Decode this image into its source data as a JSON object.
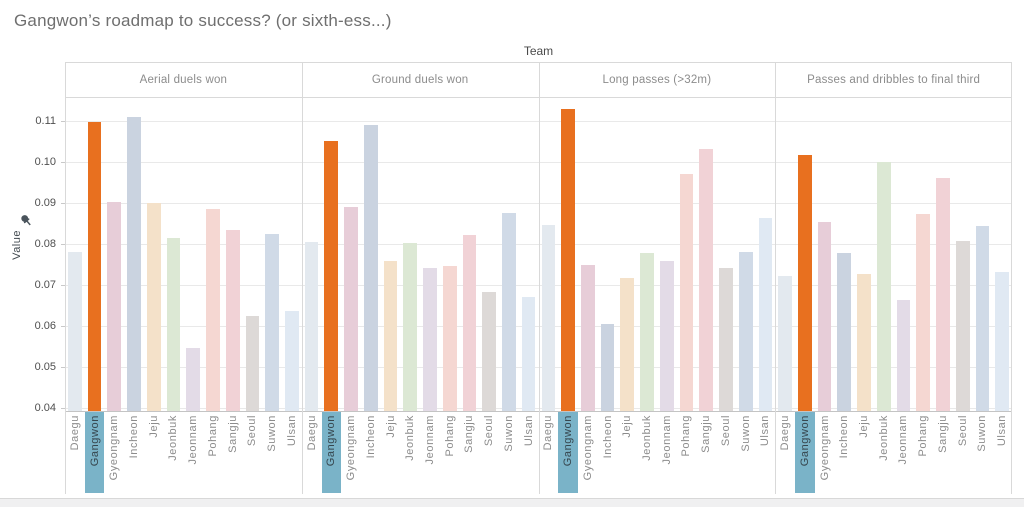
{
  "title": "Gangwon’s roadmap to success? (or sixth-ess...)",
  "column_field_label": "Team",
  "y_axis": {
    "label": "Value",
    "icon": "pushpin-icon",
    "tick_labels": [
      "0.04",
      "0.05",
      "0.06",
      "0.07",
      "0.08",
      "0.09",
      "0.10",
      "0.11"
    ]
  },
  "highlighted_team": "Gangwon",
  "colors": {
    "highlight_bar": "#e8701f",
    "highlight_label_bg": "#7ab3c8",
    "highlight_label_text": "#37474f",
    "default_label_text": "#8c8c8c",
    "team_colors": {
      "Daegu": "#e3e9ef",
      "Gangwon": "#e8701f",
      "Gyeongnam": "#e7cdd8",
      "Incheon": "#cad3e0",
      "Jeju": "#f4e1c9",
      "Jeonbuk": "#dce8d4",
      "Jeonnam": "#e3dbe7",
      "Pohang": "#f5d7d2",
      "Sangju": "#f1d2d6",
      "Seoul": "#ddd9d7",
      "Suwon": "#d0dae7",
      "Ulsan": "#e0e9f3"
    }
  },
  "chart_data": {
    "type": "bar",
    "title": "Gangwon’s roadmap to success? (or sixth-ess...)",
    "xlabel": "Team",
    "ylabel": "Value",
    "ylim": [
      0.0392,
      0.1158
    ],
    "gridline_values": [
      0.04,
      0.05,
      0.06,
      0.07,
      0.08,
      0.09,
      0.1,
      0.11
    ],
    "grid": true,
    "legend": false,
    "categories": [
      "Daegu",
      "Gangwon",
      "Gyeongnam",
      "Incheon",
      "Jeju",
      "Jeonbuk",
      "Jeonnam",
      "Pohang",
      "Sangju",
      "Seoul",
      "Suwon",
      "Ulsan"
    ],
    "panels": [
      {
        "label": "Aerial duels won",
        "values": [
          0.0779,
          0.1097,
          0.0901,
          0.111,
          0.09,
          0.0814,
          0.0547,
          0.0885,
          0.0834,
          0.0624,
          0.0825,
          0.0637
        ]
      },
      {
        "label": "Ground duels won",
        "values": [
          0.0805,
          0.1051,
          0.089,
          0.109,
          0.0757,
          0.0801,
          0.0741,
          0.0746,
          0.0822,
          0.0683,
          0.0874,
          0.067
        ]
      },
      {
        "label": "Long passes (>32m)",
        "values": [
          0.0847,
          0.113,
          0.0749,
          0.0605,
          0.0716,
          0.0778,
          0.0757,
          0.0971,
          0.1031,
          0.0741,
          0.078,
          0.0864
        ]
      },
      {
        "label": "Passes and dribbles to final third",
        "values": [
          0.0722,
          0.1016,
          0.0853,
          0.0777,
          0.0727,
          0.0999,
          0.0663,
          0.0873,
          0.0961,
          0.0806,
          0.0844,
          0.073
        ]
      }
    ]
  }
}
